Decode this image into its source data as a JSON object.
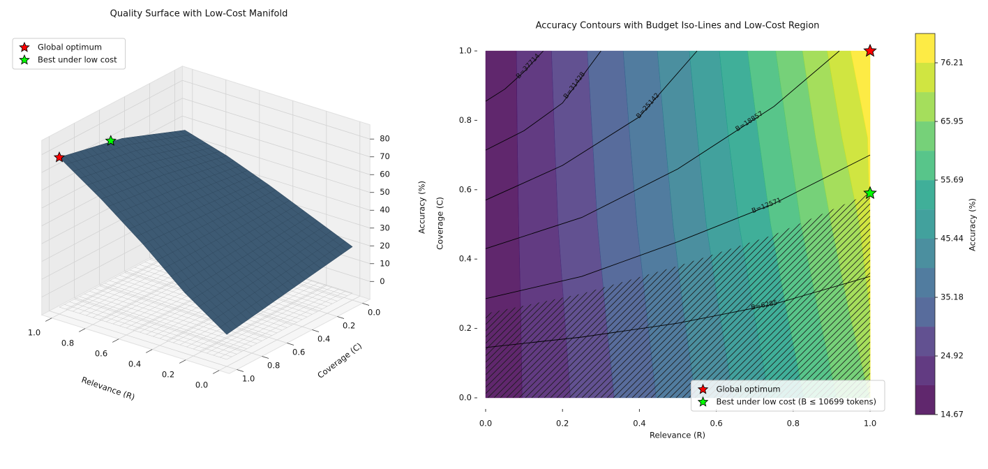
{
  "chart_data": [
    {
      "type": "surface",
      "title": "Quality Surface with Low-Cost Manifold",
      "x_label": "Relevance (R)",
      "y_label": "Coverage (C)",
      "x": [
        0,
        0.25,
        0.5,
        0.75,
        1
      ],
      "y": [
        0,
        0.25,
        0.5,
        0.75,
        1
      ],
      "z": [
        [
          20,
          30,
          40,
          49,
          56
        ],
        [
          17,
          28.5,
          41,
          53,
          63
        ],
        [
          14,
          27,
          42,
          57,
          70
        ],
        [
          11,
          25.5,
          43,
          59.5,
          74
        ],
        [
          8,
          24,
          44,
          62,
          78
        ]
      ],
      "color": "#3d5a73",
      "xlim": [
        0,
        1
      ],
      "ylim": [
        0,
        1
      ],
      "zlim": [
        -10,
        88
      ],
      "xticks": [
        {
          "value": 0,
          "label": "0.0"
        },
        {
          "value": 0.2,
          "label": "0.2"
        },
        {
          "value": 0.4,
          "label": "0.4"
        },
        {
          "value": 0.6,
          "label": "0.6"
        },
        {
          "value": 0.8,
          "label": "0.8"
        },
        {
          "value": 1,
          "label": "1.0"
        }
      ],
      "yticks": [
        {
          "value": 0,
          "label": "0.0"
        },
        {
          "value": 0.2,
          "label": "0.2"
        },
        {
          "value": 0.4,
          "label": "0.4"
        },
        {
          "value": 0.6,
          "label": "0.6"
        },
        {
          "value": 0.8,
          "label": "0.8"
        },
        {
          "value": 1,
          "label": "1.0"
        }
      ],
      "zticks": [
        0,
        10,
        20,
        30,
        40,
        50,
        60,
        70,
        80
      ],
      "markers": [
        {
          "name": "Global optimum",
          "color": "#ff0000",
          "x": 1,
          "y": 1,
          "z": 78
        },
        {
          "name": "Best under low cost",
          "color": "#00ff00",
          "x": 1,
          "y": 0.59,
          "z": 72
        }
      ],
      "legend": "upper left"
    },
    {
      "type": "contour",
      "title": "Accuracy Contours with Budget Iso-Lines and Low-Cost Region",
      "x_label": "Relevance (R)",
      "y_label": "Coverage (C)",
      "z_label": "Accuracy (%)",
      "x": [
        0,
        0.1,
        0.2,
        0.3,
        0.4,
        0.5,
        0.6,
        0.7,
        0.8,
        0.9,
        1
      ],
      "y": [
        0,
        0.25,
        0.5,
        0.75,
        1
      ],
      "z": [
        [
          16,
          20,
          24,
          28.5,
          33,
          38,
          43,
          48.5,
          54,
          60,
          66
        ],
        [
          15.7,
          20.2,
          24.7,
          29.5,
          34.2,
          39.5,
          45,
          50.7,
          56.7,
          63,
          69.5
        ],
        [
          15.5,
          20.5,
          25.5,
          30.5,
          35.5,
          41,
          47,
          53,
          59.5,
          66,
          73
        ],
        [
          15.2,
          20.8,
          26,
          31.2,
          36.5,
          42.2,
          48.5,
          55,
          61.7,
          69,
          76.7
        ],
        [
          15,
          21,
          26.5,
          32,
          37.5,
          43.5,
          50,
          57,
          64,
          72,
          80.5
        ]
      ],
      "levels": [
        14.67,
        19.8,
        24.92,
        30.05,
        35.18,
        40.31,
        45.44,
        50.56,
        55.69,
        60.82,
        65.95,
        71.08,
        76.21,
        81.34
      ],
      "colors": [
        "#440154",
        "#47196c",
        "#46337e",
        "#3b528b",
        "#32658e",
        "#2c7b8e",
        "#21918c",
        "#1fa187",
        "#3bbb75",
        "#5ec962",
        "#95d840",
        "#c8e020",
        "#fde725"
      ],
      "xlim": [
        0,
        1
      ],
      "ylim": [
        0,
        1
      ],
      "xticks": [
        {
          "value": 0,
          "label": "0.0"
        },
        {
          "value": 0.2,
          "label": "0.2"
        },
        {
          "value": 0.4,
          "label": "0.4"
        },
        {
          "value": 0.6,
          "label": "0.6"
        },
        {
          "value": 0.8,
          "label": "0.8"
        },
        {
          "value": 1,
          "label": "1.0"
        }
      ],
      "yticks": [
        {
          "value": 0,
          "label": "0.0"
        },
        {
          "value": 0.2,
          "label": "0.2"
        },
        {
          "value": 0.4,
          "label": "0.4"
        },
        {
          "value": 0.6,
          "label": "0.6"
        },
        {
          "value": 0.8,
          "label": "0.8"
        },
        {
          "value": 1,
          "label": "1.0"
        }
      ],
      "colorbar_ticks": [
        14.67,
        24.92,
        35.18,
        45.44,
        55.69,
        65.95,
        76.21
      ],
      "iso_lines": [
        {
          "label": "B=37714",
          "x": [
            0,
            0.05,
            0.1,
            0.15
          ],
          "y": [
            0.855,
            0.89,
            0.94,
            1
          ]
        },
        {
          "label": "B=31428",
          "x": [
            0,
            0.1,
            0.2,
            0.3
          ],
          "y": [
            0.714,
            0.77,
            0.85,
            1
          ]
        },
        {
          "label": "B=25142",
          "x": [
            0,
            0.2,
            0.4,
            0.55
          ],
          "y": [
            0.57,
            0.67,
            0.81,
            1
          ]
        },
        {
          "label": "B=18857",
          "x": [
            0,
            0.25,
            0.5,
            0.75,
            0.92
          ],
          "y": [
            0.43,
            0.52,
            0.66,
            0.84,
            1
          ]
        },
        {
          "label": "B=12571",
          "x": [
            0,
            0.25,
            0.5,
            0.75,
            1
          ],
          "y": [
            0.286,
            0.35,
            0.45,
            0.56,
            0.7
          ]
        },
        {
          "label": "B=6285",
          "x": [
            0,
            0.25,
            0.5,
            0.75,
            1
          ],
          "y": [
            0.145,
            0.175,
            0.215,
            0.27,
            0.35
          ]
        }
      ],
      "low_cost_region": {
        "x": [
          0,
          0.25,
          0.5,
          0.75,
          1
        ],
        "y": [
          0.243,
          0.3,
          0.38,
          0.47,
          0.59
        ]
      },
      "markers": [
        {
          "name": "Global optimum",
          "color": "#ff0000",
          "x": 1,
          "y": 1
        },
        {
          "name": "Best under low cost (B ≤ 10699 tokens)",
          "color": "#00ff00",
          "x": 1,
          "y": 0.59
        }
      ],
      "legend": "lower right"
    }
  ]
}
